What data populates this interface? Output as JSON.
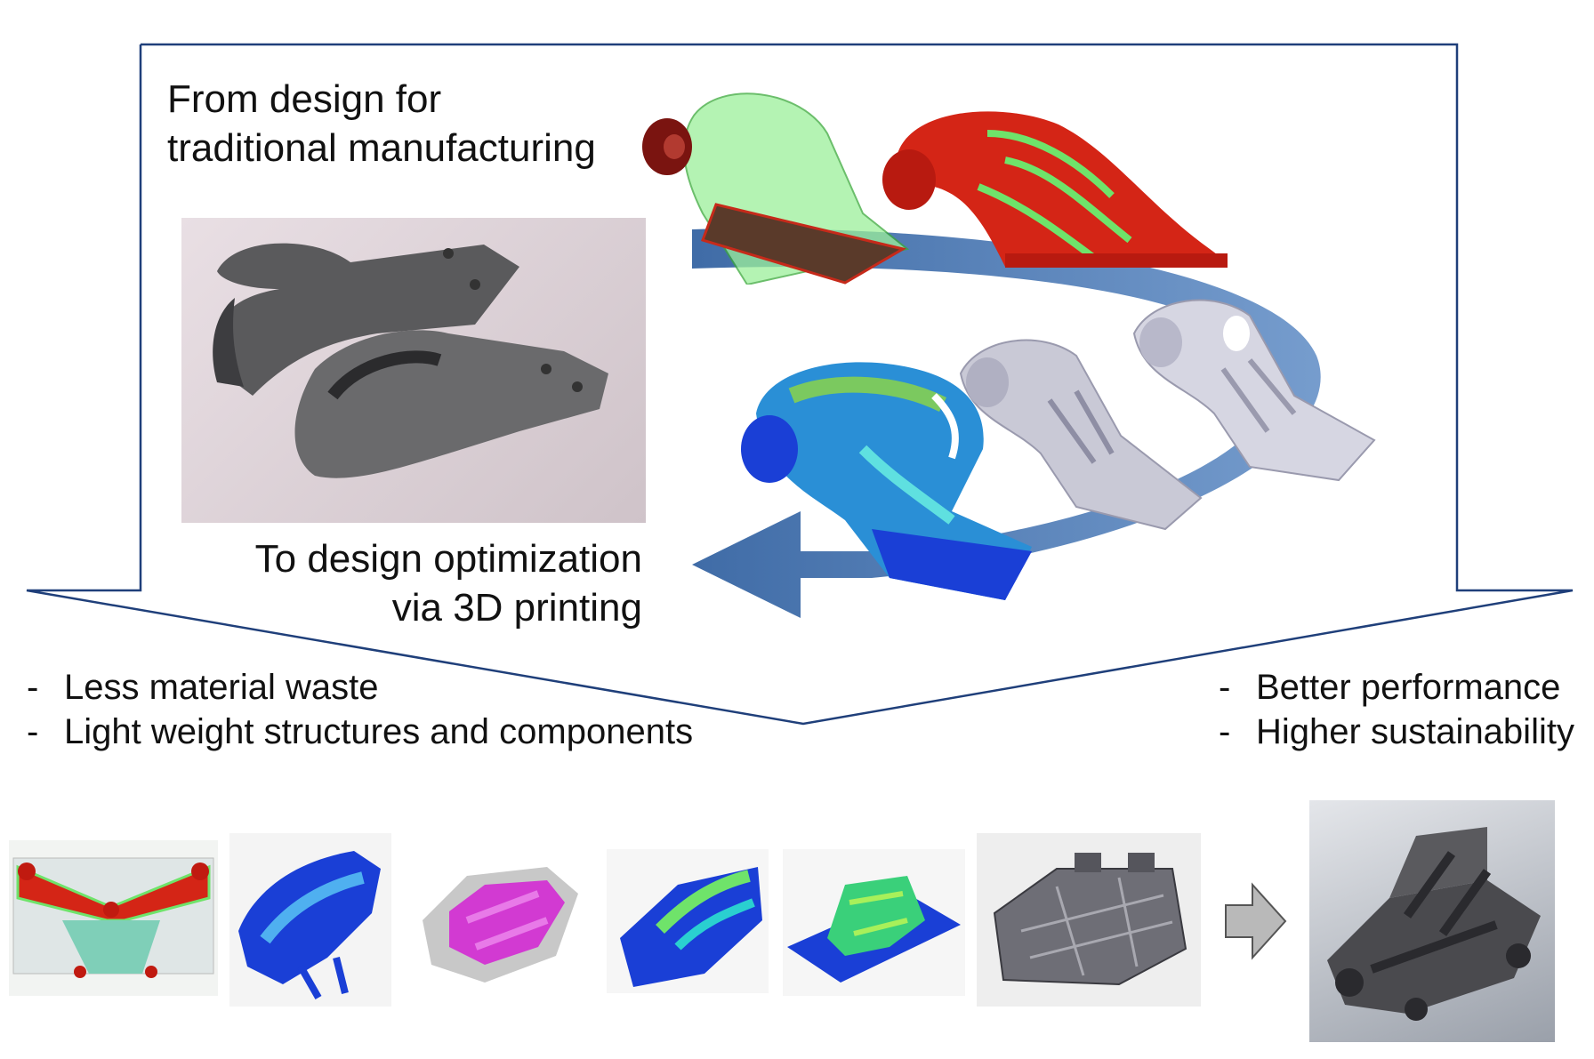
{
  "top": {
    "from_line1": "From design for",
    "from_line2": "traditional manufacturing",
    "to_line1": "To design optimization",
    "to_line2": "via 3D printing"
  },
  "left_bullets": [
    "Less material waste",
    "Light weight structures and components"
  ],
  "right_bullets": [
    "Better performance",
    "Higher sustainability"
  ],
  "bullet_marker": "-",
  "colors": {
    "frame": "#1f3f7a",
    "flow_arrow": "#3f6fad",
    "gray_arrow": "#b9b9b9",
    "stress_red": "#d42516",
    "mesh_green": "#6fe36a",
    "fea_blue": "#1a3fd6",
    "part_gray": "#c9c9d6"
  },
  "icons": [
    "gray-right-arrow-icon",
    "curved-flow-arrow-icon"
  ]
}
